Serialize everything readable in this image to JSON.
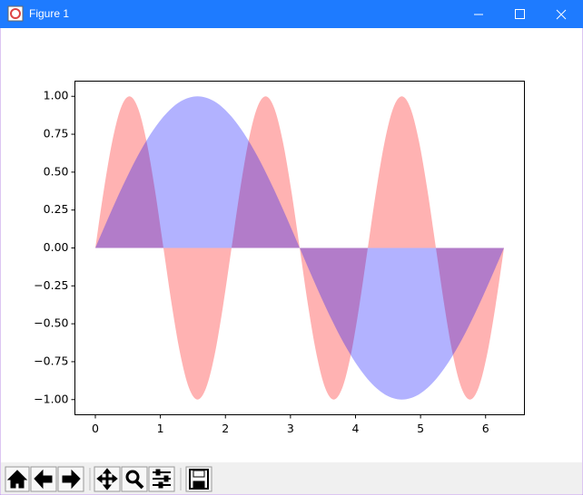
{
  "window": {
    "title": "Figure 1"
  },
  "chart_data": {
    "type": "area",
    "x": [
      0,
      0.131,
      0.262,
      0.393,
      0.524,
      0.654,
      0.785,
      0.916,
      1.047,
      1.178,
      1.309,
      1.44,
      1.571,
      1.702,
      1.833,
      1.963,
      2.094,
      2.225,
      2.356,
      2.487,
      2.618,
      2.749,
      2.88,
      3.011,
      3.142,
      3.272,
      3.403,
      3.534,
      3.665,
      3.796,
      3.927,
      4.058,
      4.189,
      4.32,
      4.451,
      4.581,
      4.712,
      4.843,
      4.974,
      5.105,
      5.236,
      5.367,
      5.498,
      5.629,
      5.76,
      5.89,
      6.021,
      6.152,
      6.283
    ],
    "series": [
      {
        "color": "#ff0000",
        "values": [
          0,
          0.383,
          0.707,
          0.924,
          1,
          0.924,
          0.707,
          0.383,
          0,
          -0.383,
          -0.707,
          -0.924,
          -1,
          -0.924,
          -0.707,
          -0.383,
          0,
          0.383,
          0.707,
          0.924,
          1,
          0.924,
          0.707,
          0.383,
          0,
          -0.383,
          -0.707,
          -0.924,
          -1,
          -0.924,
          -0.707,
          -0.383,
          0,
          0.383,
          0.707,
          0.924,
          1,
          0.924,
          0.707,
          0.383,
          0,
          -0.383,
          -0.707,
          -0.924,
          -1,
          -0.924,
          -0.707,
          -0.383,
          0
        ]
      },
      {
        "color": "#0000ff",
        "values": [
          0,
          0.131,
          0.259,
          0.383,
          0.5,
          0.609,
          0.707,
          0.793,
          0.866,
          0.924,
          0.966,
          0.991,
          1,
          0.991,
          0.966,
          0.924,
          0.866,
          0.793,
          0.707,
          0.609,
          0.5,
          0.383,
          0.259,
          0.131,
          0,
          -0.131,
          -0.259,
          -0.383,
          -0.5,
          -0.609,
          -0.707,
          -0.793,
          -0.866,
          -0.924,
          -0.966,
          -0.991,
          -1,
          -0.991,
          -0.966,
          -0.924,
          -0.866,
          -0.793,
          -0.707,
          -0.609,
          -0.5,
          -0.383,
          -0.259,
          -0.131,
          0
        ]
      }
    ],
    "alpha": 0.3,
    "xlim": [
      -0.314,
      6.597
    ],
    "ylim": [
      -1.1,
      1.1
    ],
    "xticks": [
      0,
      1,
      2,
      3,
      4,
      5,
      6
    ],
    "yticks": [
      {
        "value": -1,
        "label": "−1.00"
      },
      {
        "value": -0.75,
        "label": "−0.75"
      },
      {
        "value": -0.5,
        "label": "−0.50"
      },
      {
        "value": -0.25,
        "label": "−0.25"
      },
      {
        "value": 0,
        "label": "0.00"
      },
      {
        "value": 0.25,
        "label": "0.25"
      },
      {
        "value": 0.5,
        "label": "0.50"
      },
      {
        "value": 0.75,
        "label": "0.75"
      },
      {
        "value": 1,
        "label": "1.00"
      }
    ]
  }
}
